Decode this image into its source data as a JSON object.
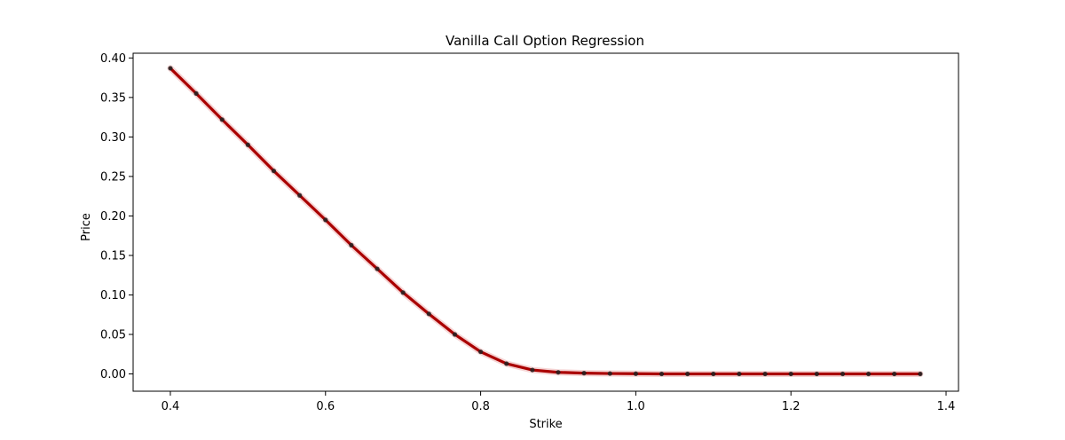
{
  "chart_data": {
    "type": "line",
    "title": "Vanilla Call Option Regression",
    "xlabel": "Strike",
    "ylabel": "Price",
    "xlim": [
      0.352,
      1.416
    ],
    "ylim": [
      -0.0219,
      0.406
    ],
    "xticks": [
      0.4,
      0.6,
      0.8,
      1.0,
      1.2,
      1.4
    ],
    "xtick_labels": [
      "0.4",
      "0.6",
      "0.8",
      "1.0",
      "1.2",
      "1.4"
    ],
    "yticks": [
      0.0,
      0.05,
      0.1,
      0.15,
      0.2,
      0.25,
      0.3,
      0.35,
      0.4
    ],
    "ytick_labels": [
      "0.00",
      "0.05",
      "0.10",
      "0.15",
      "0.20",
      "0.25",
      "0.30",
      "0.35",
      "0.40"
    ],
    "grid": false,
    "colors": {
      "line": "#aa0000",
      "band": "#e8a0a0",
      "points": "#222222",
      "axes": "#000000"
    },
    "series": [
      {
        "x": [
          0.4,
          0.4333,
          0.4667,
          0.5,
          0.5333,
          0.5667,
          0.6,
          0.6333,
          0.6667,
          0.7,
          0.7333,
          0.7667,
          0.8,
          0.8333,
          0.8667,
          0.9,
          0.9333,
          0.9667,
          1.0,
          1.0333,
          1.0667,
          1.1,
          1.1333,
          1.1667,
          1.2,
          1.2333,
          1.2667,
          1.3,
          1.3333,
          1.3667
        ],
        "values": [
          0.387,
          0.355,
          0.322,
          0.29,
          0.257,
          0.226,
          0.195,
          0.163,
          0.133,
          0.103,
          0.076,
          0.05,
          0.028,
          0.013,
          0.005,
          0.002,
          0.001,
          0.0005,
          0.0003,
          0.0,
          0.0,
          0.0,
          0.0,
          0.0,
          0.0,
          0.0,
          0.0,
          0.0,
          0.0,
          0.0
        ]
      }
    ]
  }
}
